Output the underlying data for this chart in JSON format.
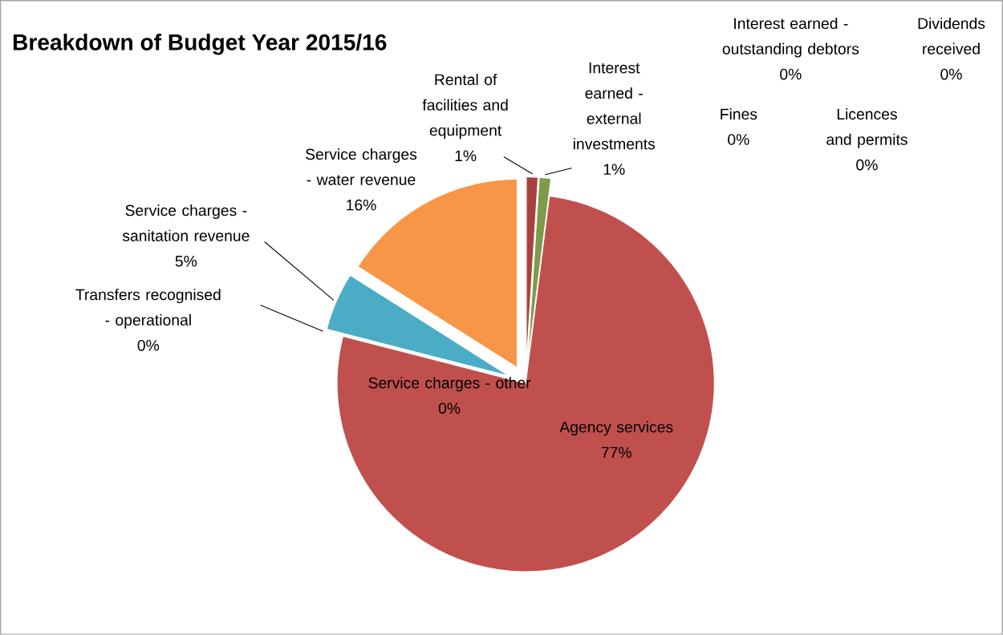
{
  "chart_data": {
    "type": "pie",
    "title": "Breakdown of Budget Year 2015/16",
    "categories": [
      "Rental of facilities and equipment",
      "Interest earned - external investments",
      "Interest earned - outstanding debtors",
      "Dividends received",
      "Fines",
      "Licences and permits",
      "Agency services",
      "Service charges - other",
      "Transfers recognised - operational",
      "Service charges - sanitation revenue",
      "Service charges - water revenue"
    ],
    "values": [
      1,
      1,
      0,
      0,
      0,
      0,
      77,
      0,
      0,
      5,
      16
    ],
    "colors": [
      "#a8413e",
      "#7f9a48",
      "#8064a2",
      "#4bacc6",
      "#f79646",
      "#2c4d75",
      "#c0504d",
      "#4f81bd",
      "#9bbb59",
      "#4bacc6",
      "#f79646"
    ],
    "value_labels": [
      "1%",
      "1%",
      "0%",
      "0%",
      "0%",
      "0%",
      "77%",
      "0%",
      "0%",
      "5%",
      "16%"
    ]
  }
}
